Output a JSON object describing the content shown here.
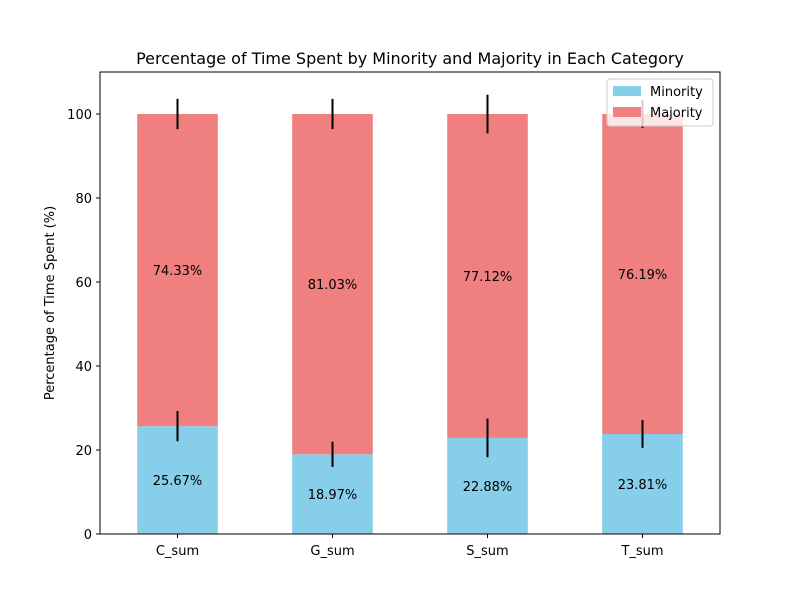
{
  "chart_data": {
    "type": "bar",
    "stacked": true,
    "title": "Percentage of Time Spent by Minority and Majority in Each Category",
    "xlabel": "",
    "ylabel": "Percentage of Time Spent (%)",
    "ylim": [
      0,
      110
    ],
    "yticks": [
      0,
      20,
      40,
      60,
      80,
      100
    ],
    "grid": false,
    "legend_position": "top-right",
    "categories": [
      "C_sum",
      "G_sum",
      "S_sum",
      "T_sum"
    ],
    "series": [
      {
        "name": "Minority",
        "color": "#87CEEB",
        "values": [
          25.67,
          18.97,
          22.88,
          23.81
        ],
        "errors": [
          3.6,
          3.0,
          4.6,
          3.3
        ],
        "labels": [
          "25.67%",
          "18.97%",
          "22.88%",
          "23.81%"
        ]
      },
      {
        "name": "Majority",
        "color": "#F08080",
        "values": [
          74.33,
          81.03,
          77.12,
          76.19
        ],
        "errors": [
          3.6,
          3.6,
          4.6,
          3.3
        ],
        "labels": [
          "74.33%",
          "81.03%",
          "77.12%",
          "76.19%"
        ]
      }
    ]
  }
}
